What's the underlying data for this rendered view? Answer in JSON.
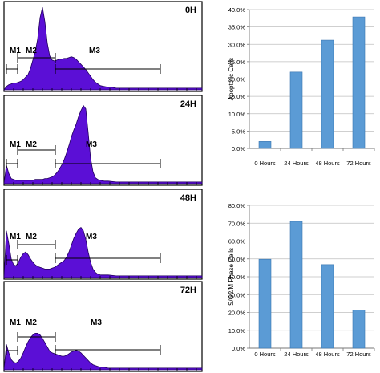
{
  "colors": {
    "histogram_fill": "#5b0fd6",
    "histogram_stroke": "#23005f",
    "bar_fill": "#5b9bd5",
    "bar_stroke": "#3a75b0",
    "gridline": "#bfbfbf",
    "frame": "#000000"
  },
  "chart_data": [
    {
      "type": "area",
      "panel_label": "0H",
      "marker_labels": [
        "M1",
        "M2",
        "M3"
      ],
      "x": [
        0,
        3,
        6,
        9,
        12,
        15,
        18,
        21,
        24,
        27,
        30,
        33,
        36,
        39,
        42,
        45,
        48,
        51,
        54,
        57,
        60,
        63,
        66,
        69,
        72,
        75,
        78,
        81,
        84,
        87,
        90,
        93,
        96,
        99,
        102,
        105,
        108,
        111,
        114,
        117,
        120,
        125,
        130,
        135,
        140,
        150,
        160,
        170,
        180,
        190,
        200,
        210,
        220,
        230,
        240,
        247
      ],
      "values": [
        0,
        4,
        6,
        7,
        8,
        8,
        9,
        10,
        12,
        15,
        18,
        25,
        35,
        45,
        60,
        85,
        97,
        80,
        55,
        40,
        35,
        34,
        35,
        36,
        36,
        37,
        37,
        38,
        39,
        38,
        36,
        33,
        30,
        27,
        24,
        20,
        16,
        12,
        9,
        7,
        5,
        4,
        3,
        3,
        2,
        2,
        2,
        2,
        2,
        2,
        2,
        2,
        2,
        2,
        2,
        2
      ],
      "ylim": [
        0,
        100
      ]
    },
    {
      "type": "area",
      "panel_label": "24H",
      "marker_labels": [
        "M1",
        "M2",
        "M3"
      ],
      "x": [
        0,
        3,
        6,
        9,
        12,
        15,
        18,
        21,
        24,
        27,
        30,
        33,
        36,
        39,
        42,
        45,
        48,
        51,
        54,
        57,
        60,
        63,
        66,
        69,
        72,
        75,
        78,
        81,
        84,
        87,
        90,
        93,
        96,
        99,
        102,
        105,
        108,
        111,
        114,
        117,
        120,
        125,
        130,
        140,
        150,
        160,
        170,
        180,
        190,
        200,
        210,
        220,
        230,
        240,
        247
      ],
      "values": [
        0,
        22,
        12,
        6,
        5,
        4,
        4,
        4,
        4,
        4,
        4,
        4,
        4,
        5,
        5,
        5,
        5,
        6,
        6,
        7,
        8,
        10,
        13,
        17,
        22,
        28,
        36,
        45,
        55,
        63,
        70,
        79,
        86,
        92,
        88,
        60,
        30,
        14,
        7,
        5,
        4,
        3,
        3,
        2,
        2,
        2,
        2,
        2,
        2,
        2,
        2,
        2,
        2,
        2,
        2
      ],
      "ylim": [
        0,
        100
      ]
    },
    {
      "type": "area",
      "panel_label": "48H",
      "marker_labels": [
        "M1",
        "M2",
        "M3"
      ],
      "x": [
        0,
        3,
        6,
        9,
        12,
        15,
        18,
        21,
        24,
        27,
        30,
        33,
        36,
        39,
        42,
        45,
        48,
        51,
        54,
        57,
        60,
        63,
        66,
        69,
        72,
        75,
        78,
        81,
        84,
        87,
        90,
        93,
        96,
        99,
        102,
        105,
        108,
        111,
        114,
        117,
        120,
        125,
        130,
        140,
        150,
        160,
        170,
        180,
        190,
        200,
        210,
        220,
        230,
        240,
        247
      ],
      "values": [
        0,
        55,
        40,
        22,
        15,
        14,
        18,
        24,
        28,
        30,
        27,
        22,
        18,
        15,
        13,
        12,
        11,
        10,
        10,
        10,
        11,
        12,
        14,
        16,
        18,
        20,
        24,
        30,
        38,
        46,
        52,
        57,
        59,
        55,
        45,
        30,
        18,
        10,
        6,
        4,
        3,
        3,
        3,
        2,
        2,
        2,
        2,
        2,
        2,
        2,
        2,
        2,
        2,
        2,
        2
      ],
      "ylim": [
        0,
        100
      ]
    },
    {
      "type": "area",
      "panel_label": "72H",
      "marker_labels": [
        "M1",
        "M2",
        "M3"
      ],
      "x": [
        0,
        3,
        6,
        9,
        12,
        15,
        18,
        21,
        24,
        27,
        30,
        33,
        36,
        39,
        42,
        45,
        48,
        51,
        54,
        57,
        60,
        63,
        66,
        69,
        72,
        75,
        78,
        81,
        84,
        87,
        90,
        93,
        96,
        99,
        102,
        105,
        108,
        111,
        114,
        117,
        120,
        125,
        130,
        140,
        150,
        160,
        170,
        180,
        190,
        200,
        210,
        220,
        230,
        240,
        247
      ],
      "values": [
        0,
        30,
        20,
        12,
        9,
        8,
        10,
        14,
        20,
        27,
        33,
        38,
        41,
        43,
        43,
        41,
        37,
        32,
        27,
        22,
        20,
        19,
        18,
        17,
        16,
        16,
        17,
        19,
        21,
        22,
        23,
        22,
        20,
        17,
        14,
        11,
        8,
        6,
        5,
        4,
        3,
        3,
        2,
        2,
        2,
        2,
        2,
        2,
        2,
        2,
        2,
        2,
        2,
        2,
        2
      ],
      "ylim": [
        0,
        100
      ]
    },
    {
      "type": "bar",
      "categories": [
        "0 Hours",
        "24 Hours",
        "48 Hours",
        "72 Hours"
      ],
      "values": [
        2.0,
        22.0,
        31.2,
        37.9
      ],
      "ylabel": "Apoptotic Cells",
      "ylim": [
        0,
        40
      ],
      "yticks": [
        "0.0%",
        "5.0%",
        "10.0%",
        "15.0%",
        "20.0%",
        "25.0%",
        "30.0%",
        "35.0%",
        "40.0%"
      ],
      "grid": true
    },
    {
      "type": "bar",
      "categories": [
        "0 Hours",
        "24 Hours",
        "48 Hours",
        "72 Hours"
      ],
      "values": [
        49.8,
        71.0,
        46.8,
        21.3
      ],
      "ylabel": "S/G2/M Phase Cells",
      "ylim": [
        0,
        80
      ],
      "yticks": [
        "0.0%",
        "10.0%",
        "20.0%",
        "30.0%",
        "40.0%",
        "50.0%",
        "60.0%",
        "70.0%",
        "80.0%"
      ],
      "grid": true
    }
  ]
}
